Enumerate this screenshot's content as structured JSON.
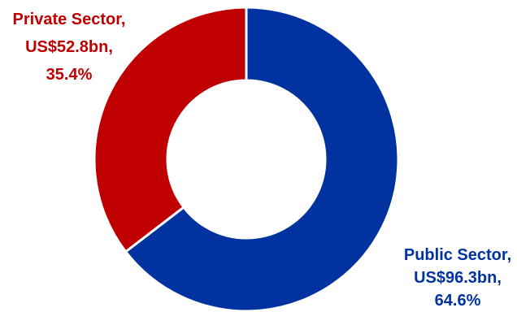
{
  "chart_data": {
    "type": "pie",
    "style": "donut",
    "slices": [
      {
        "name": "Public Sector",
        "value": 96.3,
        "percent": 64.6,
        "color": "#0033a0",
        "label_lines": [
          "Public Sector,",
          "US$96.3bn,",
          "64.6%"
        ]
      },
      {
        "name": "Private Sector",
        "value": 52.8,
        "percent": 35.4,
        "color": "#c00000",
        "label_lines": [
          "Private Sector,",
          "US$52.8bn,",
          "35.4%"
        ]
      }
    ],
    "title": "",
    "legend": "none"
  }
}
